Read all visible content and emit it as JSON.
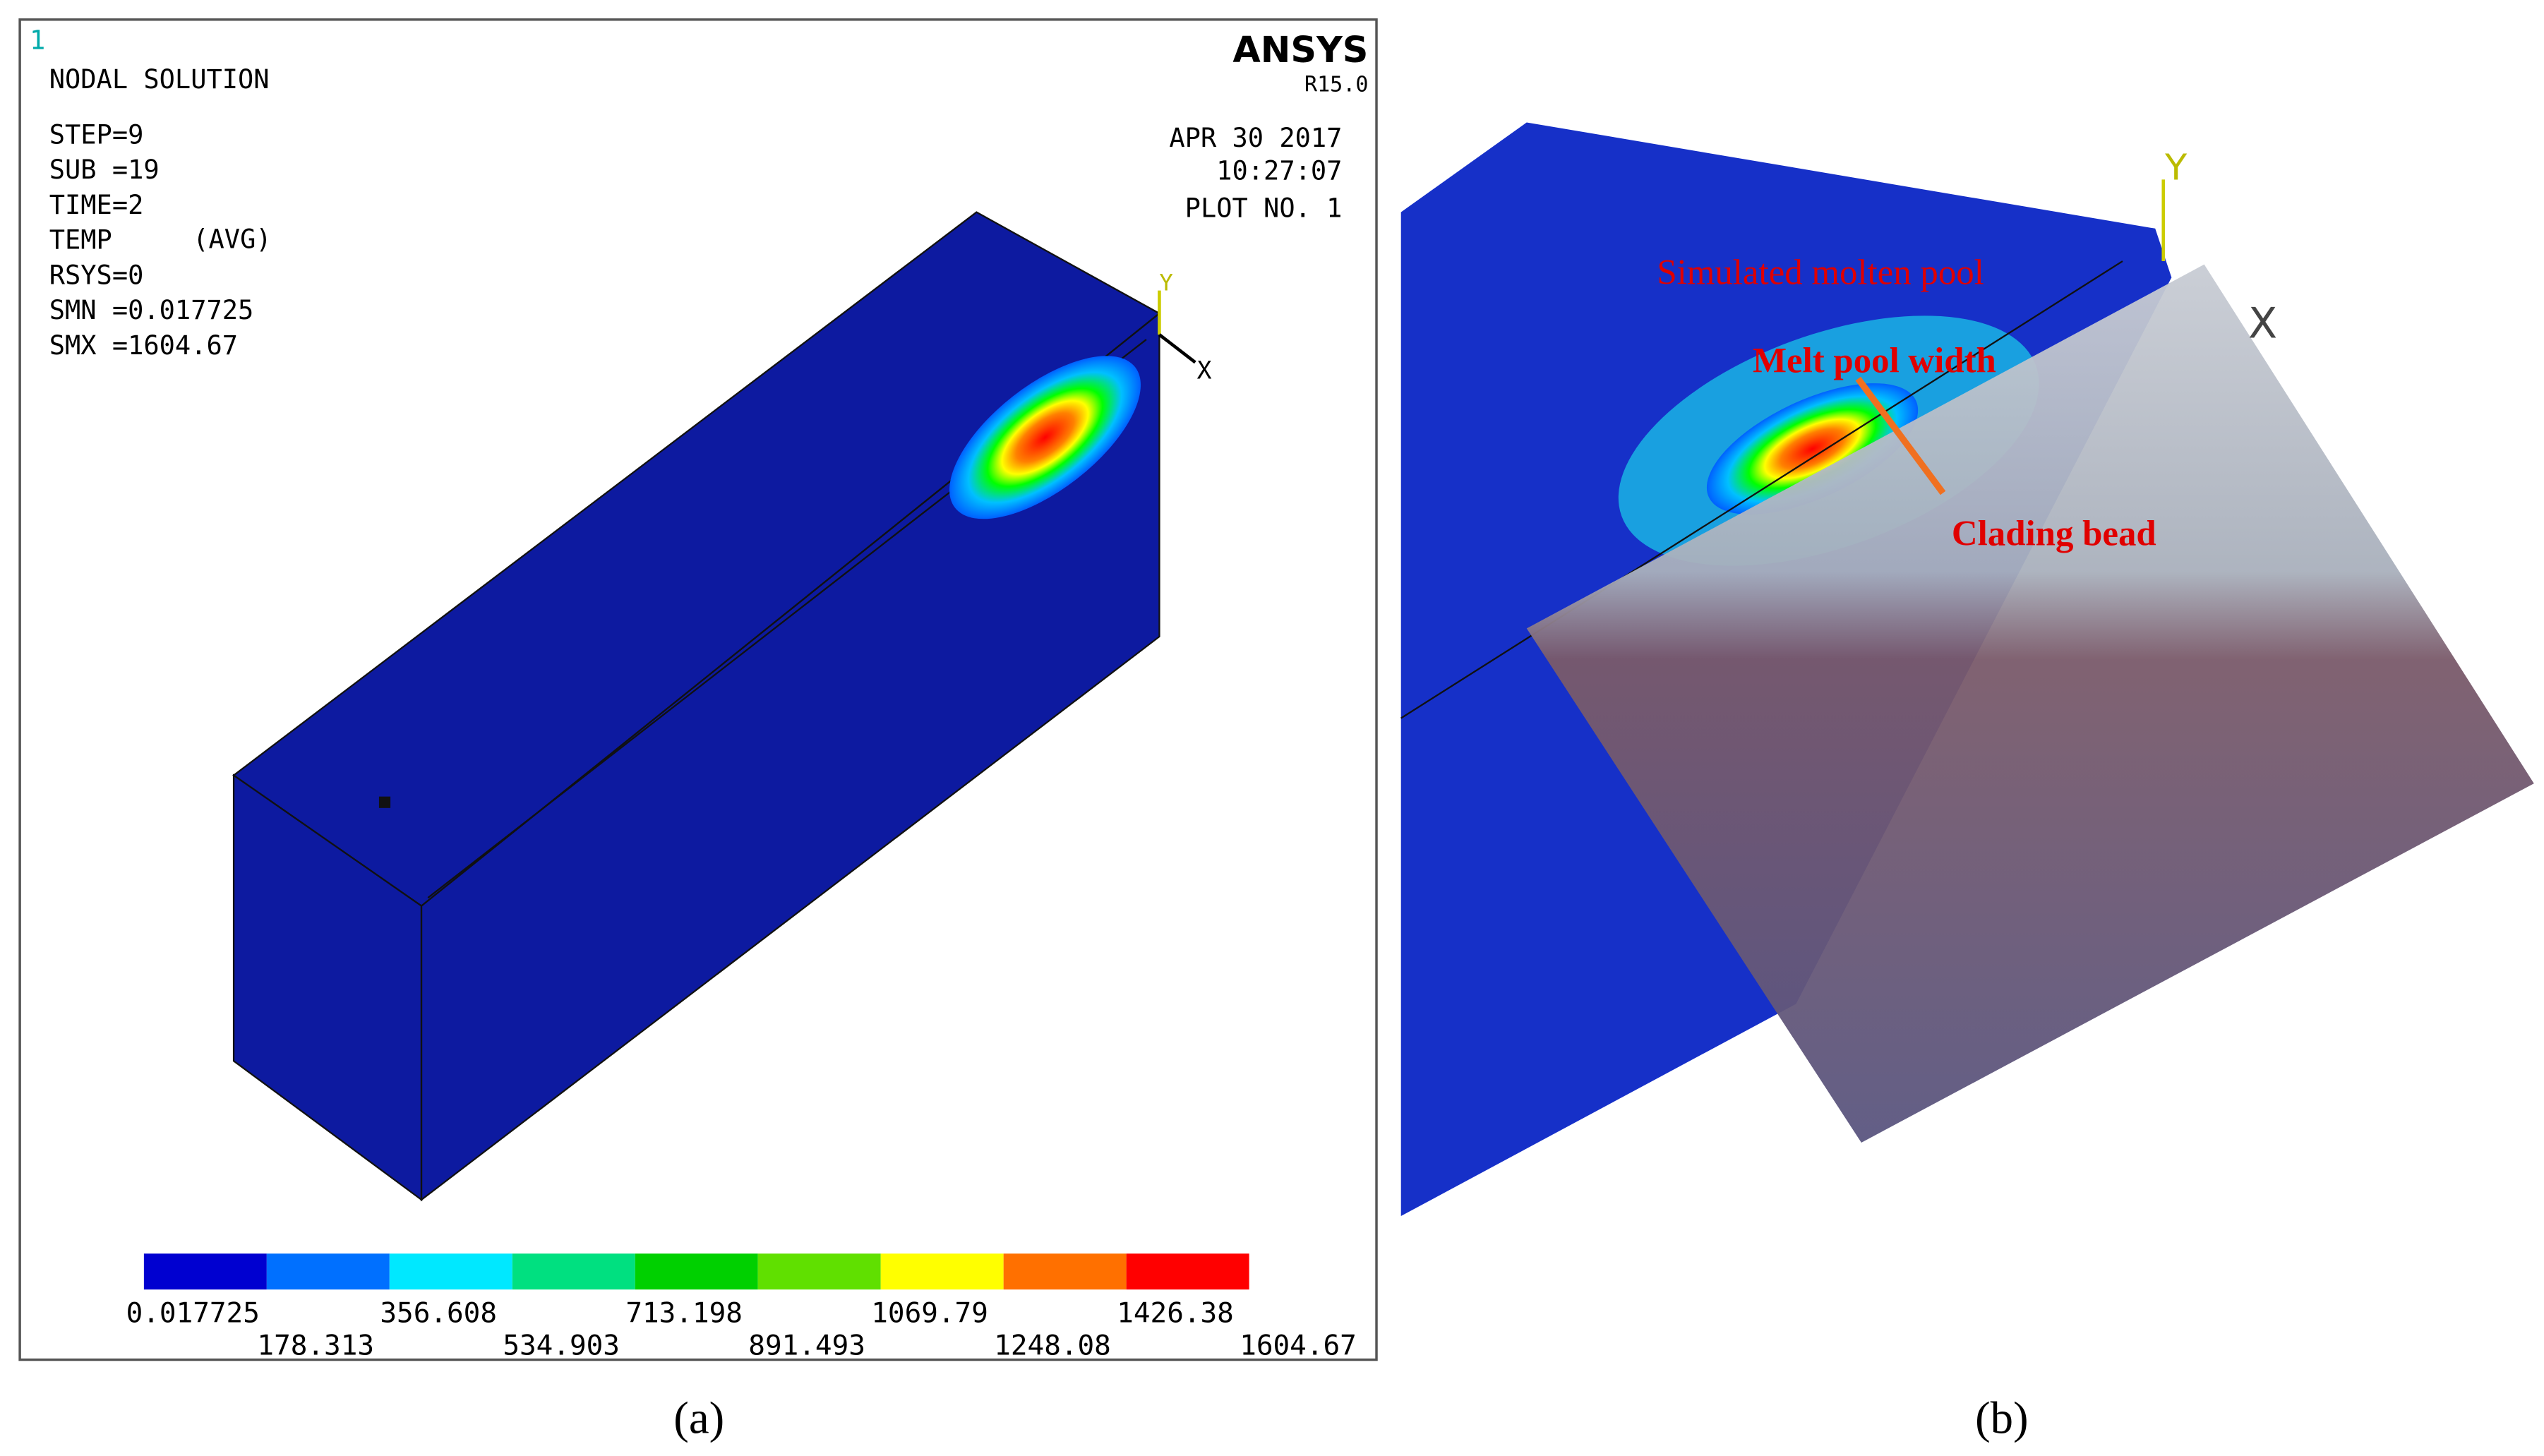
{
  "panel_a": {
    "window_number": "1",
    "title": "NODAL SOLUTION",
    "info": [
      "STEP=9",
      "SUB =19",
      "TIME=2",
      "TEMP",
      "RSYS=0",
      "SMN =0.017725",
      "SMX =1604.67"
    ],
    "avg": "(AVG)",
    "brand": "ANSYS",
    "version": "R15.0",
    "date": "APR 30 2017",
    "time": "10:27:07",
    "plot_no": "PLOT NO.   1",
    "axis_y": "Y",
    "axis_x": "X",
    "colorbar_labels": [
      "0.017725",
      "178.313",
      "356.608",
      "534.903",
      "713.198",
      "891.493",
      "1069.79",
      "1248.08",
      "1426.38",
      "1604.67"
    ],
    "caption": "(a)"
  },
  "panel_b": {
    "labels": [
      "Simulated molten pool",
      "Melt pool width",
      "Clading bead"
    ],
    "axis_y": "Y",
    "axis_x": "X",
    "caption": "(b)"
  }
}
